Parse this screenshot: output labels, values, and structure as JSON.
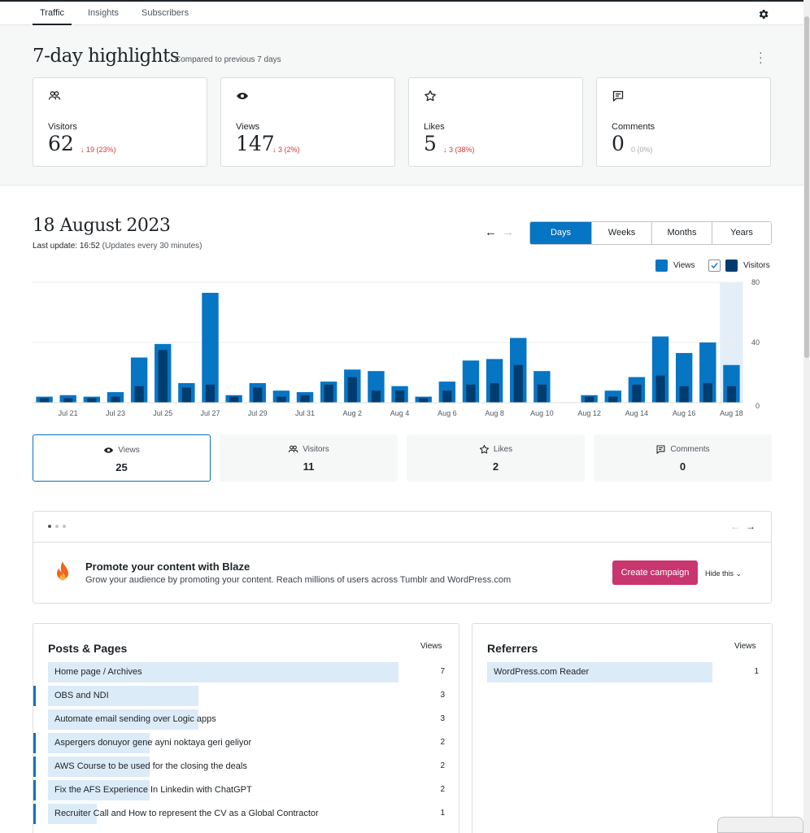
{
  "nav": {
    "tabs": [
      {
        "label": "Traffic",
        "active": true
      },
      {
        "label": "Insights",
        "active": false
      },
      {
        "label": "Subscribers",
        "active": false
      }
    ],
    "settings_icon": "gear-icon"
  },
  "highlights": {
    "title": "7-day highlights",
    "subtitle": "Compared to previous 7 days",
    "cards": [
      {
        "icon": "people-icon",
        "label": "Visitors",
        "value": "62",
        "change": "↓ 19 (23%)"
      },
      {
        "icon": "eye-icon",
        "label": "Views",
        "value": "147",
        "change": "↓ 3 (2%)"
      },
      {
        "icon": "star-icon",
        "label": "Likes",
        "value": "5",
        "change": "↓ 3 (38%)"
      },
      {
        "icon": "comment-icon",
        "label": "Comments",
        "value": "0",
        "change": "0 (0%)"
      }
    ]
  },
  "period": {
    "date": "18 August 2023",
    "last_update_label": "Last update: 16:52",
    "last_update_note": "(Updates every 30 minutes)",
    "options": [
      "Days",
      "Weeks",
      "Months",
      "Years"
    ],
    "selected": "Days"
  },
  "legend": {
    "views": "Views",
    "visitors": "Visitors"
  },
  "colors": {
    "views": "#0675c4",
    "visitors": "#003c6e",
    "accent": "#0675c4",
    "blaze_button": "#c9356e",
    "decline": "#d63638"
  },
  "chart_data": {
    "type": "bar",
    "categories": [
      "Jul 20",
      "Jul 21",
      "Jul 22",
      "Jul 23",
      "Jul 24",
      "Jul 25",
      "Jul 26",
      "Jul 27",
      "Jul 28",
      "Jul 29",
      "Jul 30",
      "Jul 31",
      "Aug 1",
      "Aug 2",
      "Aug 3",
      "Aug 4",
      "Aug 5",
      "Aug 6",
      "Aug 7",
      "Aug 8",
      "Aug 9",
      "Aug 10",
      "Aug 11",
      "Aug 12",
      "Aug 13",
      "Aug 14",
      "Aug 15",
      "Aug 16",
      "Aug 17",
      "Aug 18"
    ],
    "x_tick_labels": [
      "Jul 21",
      "Jul 23",
      "Jul 25",
      "Jul 27",
      "Jul 29",
      "Jul 31",
      "Aug 2",
      "Aug 4",
      "Aug 6",
      "Aug 8",
      "Aug 10",
      "Aug 12",
      "Aug 14",
      "Aug 16",
      "Aug 18"
    ],
    "series": [
      {
        "name": "Views",
        "values": [
          4,
          5,
          4,
          7,
          30,
          39,
          13,
          73,
          5,
          13,
          8,
          7,
          14,
          22,
          21,
          11,
          4,
          14,
          28,
          29,
          43,
          21,
          0,
          5,
          8,
          17,
          44,
          33,
          40,
          25
        ]
      },
      {
        "name": "Visitors",
        "values": [
          3,
          3,
          3,
          4,
          11,
          35,
          10,
          12,
          4,
          10,
          4,
          5,
          12,
          17,
          8,
          8,
          3,
          8,
          12,
          13,
          25,
          12,
          0,
          4,
          4,
          12,
          18,
          11,
          13,
          11
        ]
      }
    ],
    "ylim": [
      0,
      80
    ],
    "yticks": [
      0,
      40,
      80
    ],
    "highlighted": "Aug 18",
    "grid": true
  },
  "stat_tabs": [
    {
      "icon": "eye-icon",
      "label": "Views",
      "value": "25",
      "selected": true
    },
    {
      "icon": "people-icon",
      "label": "Visitors",
      "value": "11",
      "selected": false
    },
    {
      "icon": "star-icon",
      "label": "Likes",
      "value": "2",
      "selected": false
    },
    {
      "icon": "comment-icon",
      "label": "Comments",
      "value": "0",
      "selected": false
    }
  ],
  "promo": {
    "title": "Promote your content with Blaze",
    "description": "Grow your audience by promoting your content. Reach millions of users across Tumblr and WordPress.com",
    "button": "Create campaign",
    "hide": "Hide this"
  },
  "posts": {
    "title": "Posts & Pages",
    "column": "Views",
    "rows": [
      {
        "title": "Home page / Archives",
        "views": "7",
        "fraction": 1.0
      },
      {
        "title": "OBS and NDI",
        "views": "3",
        "fraction": 0.43
      },
      {
        "title": "Automate email sending over Logic apps",
        "views": "3",
        "fraction": 0.43
      },
      {
        "title": "Aspergers donuyor gene ayni noktaya geri geliyor",
        "views": "2",
        "fraction": 0.29
      },
      {
        "title": "AWS Course to be used for the closing the deals",
        "views": "2",
        "fraction": 0.29
      },
      {
        "title": "Fix the AFS Experience In Linkedin with ChatGPT",
        "views": "2",
        "fraction": 0.29
      },
      {
        "title": "Recruiter Call and How to represent the CV as a Global Contractor",
        "views": "1",
        "fraction": 0.14
      }
    ]
  },
  "referrers": {
    "title": "Referrers",
    "column": "Views",
    "rows": [
      {
        "title": "WordPress.com Reader",
        "views": "1",
        "fraction": 1.0
      }
    ]
  }
}
